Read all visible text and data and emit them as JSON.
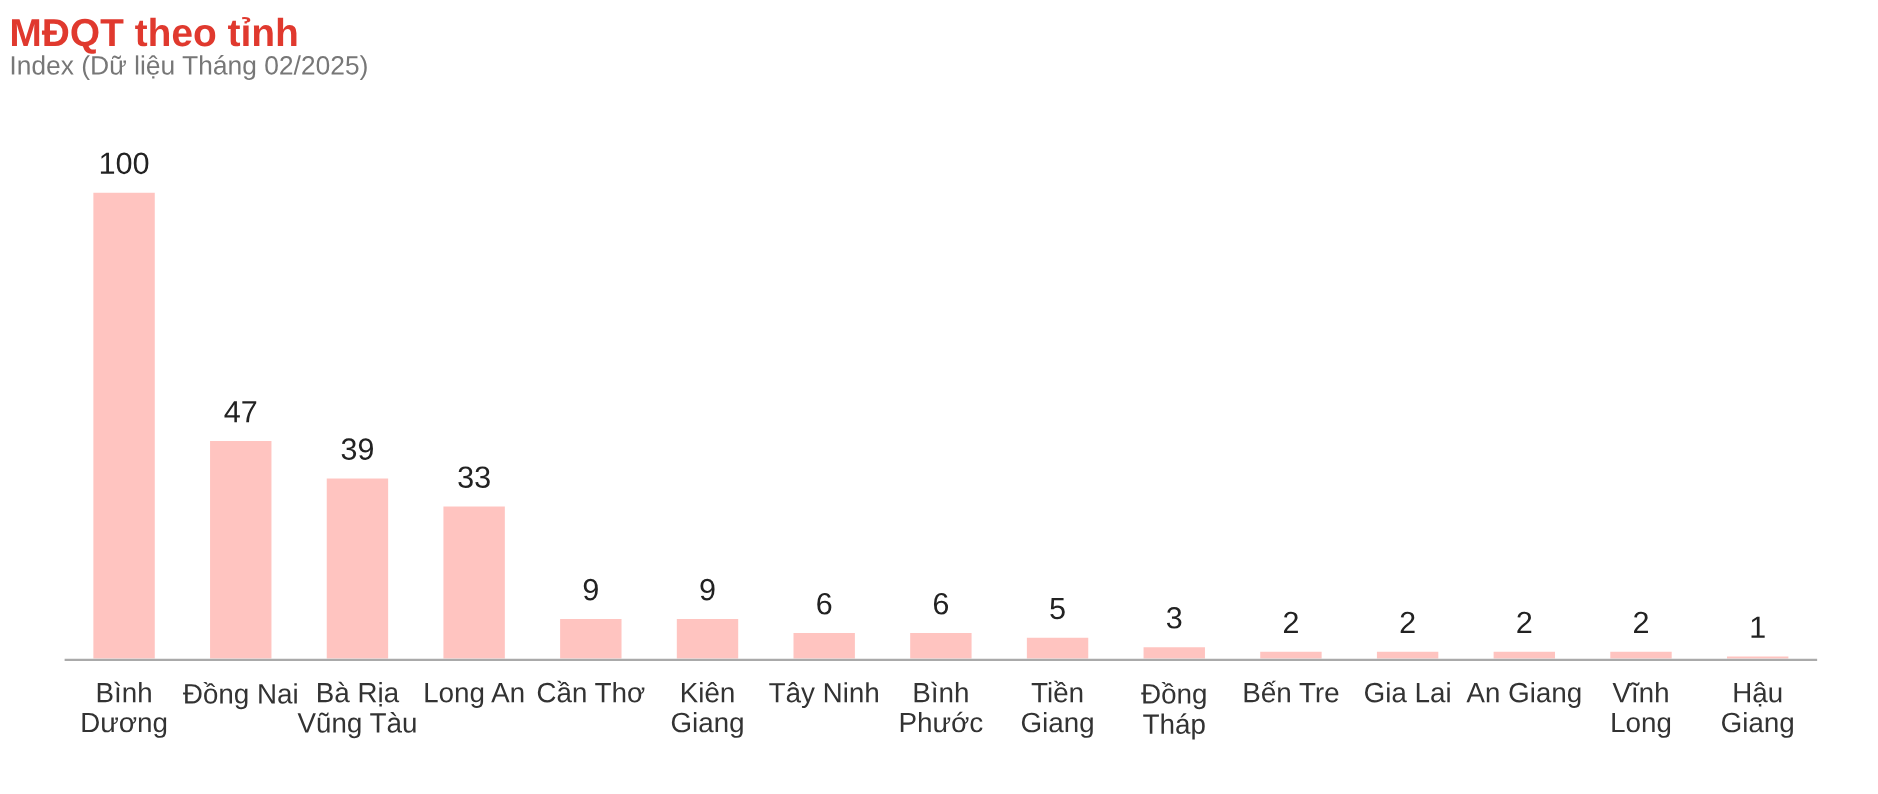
{
  "chart_data": {
    "type": "bar",
    "title": "MĐQT theo tỉnh",
    "subtitle": "Index (Dữ liệu Tháng 02/2025)",
    "categories": [
      "Bình\nDương",
      "Đồng Nai",
      "Bà Rịa\nVũng Tàu",
      "Long An",
      "Cần Thơ",
      "Kiên\nGiang",
      "Tây Ninh",
      "Bình\nPhước",
      "Tiền\nGiang",
      "Đồng\nTháp",
      "Bến Tre",
      "Gia Lai",
      "An Giang",
      "Vĩnh\nLong",
      "Hậu\nGiang"
    ],
    "values": [
      100,
      47,
      39,
      33,
      9,
      9,
      6,
      6,
      5,
      3,
      2,
      2,
      2,
      2,
      1
    ],
    "color": "#ffc4c0",
    "data_labels": true,
    "grid": false,
    "legend": false
  }
}
